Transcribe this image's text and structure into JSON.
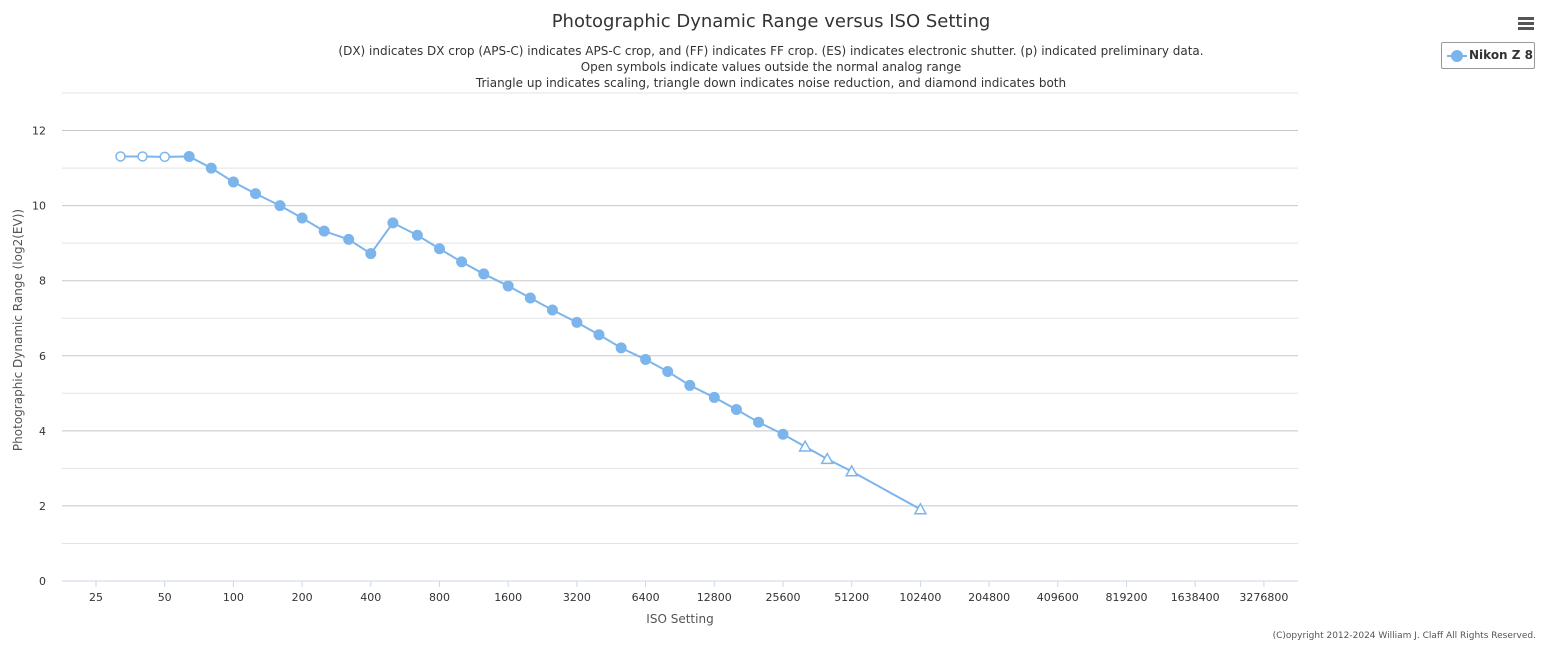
{
  "chart_data": {
    "type": "line",
    "title": "Photographic Dynamic Range versus ISO Setting",
    "subtitle_lines": [
      "(DX) indicates DX crop (APS-C) indicates APS-C crop, and (FF) indicates FF crop. (ES) indicates electronic shutter. (p) indicated preliminary data.",
      "Open symbols indicate values outside the normal analog range",
      "Triangle up indicates scaling, triangle down indicates noise reduction, and diamond indicates both"
    ],
    "xlabel": "ISO Setting",
    "ylabel": "Photographic Dynamic Range (log2(EV))",
    "x_scale": "log2",
    "x_ticks": [
      "25",
      "50",
      "100",
      "200",
      "400",
      "800",
      "1600",
      "3200",
      "6400",
      "12800",
      "25600",
      "51200",
      "102400",
      "204800",
      "409600",
      "819200",
      "1638400",
      "3276800"
    ],
    "y_ticks": [
      "0",
      "2",
      "4",
      "6",
      "8",
      "10",
      "12"
    ],
    "ylim": [
      0,
      13
    ],
    "grid": true,
    "legend_position": "top-right",
    "series": [
      {
        "name": "Nikon Z 8",
        "color": "#7cb5ec",
        "points": [
          {
            "iso": 32,
            "dr": 11.31,
            "marker": "open-circle"
          },
          {
            "iso": 40,
            "dr": 11.31,
            "marker": "open-circle"
          },
          {
            "iso": 50,
            "dr": 11.3,
            "marker": "open-circle"
          },
          {
            "iso": 64,
            "dr": 11.31,
            "marker": "circle"
          },
          {
            "iso": 80,
            "dr": 11.0,
            "marker": "circle"
          },
          {
            "iso": 100,
            "dr": 10.63,
            "marker": "circle"
          },
          {
            "iso": 125,
            "dr": 10.32,
            "marker": "circle"
          },
          {
            "iso": 160,
            "dr": 10.0,
            "marker": "circle"
          },
          {
            "iso": 200,
            "dr": 9.67,
            "marker": "circle"
          },
          {
            "iso": 250,
            "dr": 9.32,
            "marker": "circle"
          },
          {
            "iso": 320,
            "dr": 9.1,
            "marker": "circle"
          },
          {
            "iso": 400,
            "dr": 8.72,
            "marker": "circle"
          },
          {
            "iso": 500,
            "dr": 9.54,
            "marker": "circle"
          },
          {
            "iso": 640,
            "dr": 9.21,
            "marker": "circle"
          },
          {
            "iso": 800,
            "dr": 8.85,
            "marker": "circle"
          },
          {
            "iso": 1000,
            "dr": 8.5,
            "marker": "circle"
          },
          {
            "iso": 1250,
            "dr": 8.18,
            "marker": "circle"
          },
          {
            "iso": 1600,
            "dr": 7.86,
            "marker": "circle"
          },
          {
            "iso": 2000,
            "dr": 7.54,
            "marker": "circle"
          },
          {
            "iso": 2500,
            "dr": 7.22,
            "marker": "circle"
          },
          {
            "iso": 3200,
            "dr": 6.89,
            "marker": "circle"
          },
          {
            "iso": 4000,
            "dr": 6.56,
            "marker": "circle"
          },
          {
            "iso": 5000,
            "dr": 6.21,
            "marker": "circle"
          },
          {
            "iso": 6400,
            "dr": 5.9,
            "marker": "circle"
          },
          {
            "iso": 8000,
            "dr": 5.58,
            "marker": "circle"
          },
          {
            "iso": 10000,
            "dr": 5.21,
            "marker": "circle"
          },
          {
            "iso": 12800,
            "dr": 4.89,
            "marker": "circle"
          },
          {
            "iso": 16000,
            "dr": 4.57,
            "marker": "circle"
          },
          {
            "iso": 20000,
            "dr": 4.23,
            "marker": "circle"
          },
          {
            "iso": 25600,
            "dr": 3.91,
            "marker": "circle"
          },
          {
            "iso": 32000,
            "dr": 3.58,
            "marker": "open-triangle-up"
          },
          {
            "iso": 40000,
            "dr": 3.25,
            "marker": "open-triangle-up"
          },
          {
            "iso": 51200,
            "dr": 2.92,
            "marker": "open-triangle-up"
          },
          {
            "iso": 102400,
            "dr": 1.91,
            "marker": "open-triangle-up"
          }
        ]
      }
    ]
  },
  "legend": {
    "label": "Nikon Z 8"
  },
  "menu": {
    "icon": "hamburger-menu-icon"
  },
  "credit": "(C)opyright 2012-2024 William J. Claff All Rights Reserved."
}
